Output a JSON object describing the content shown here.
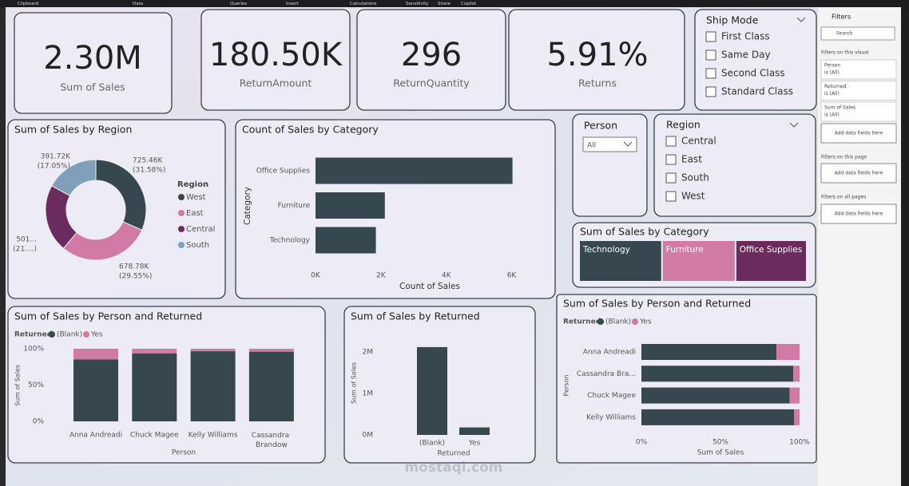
{
  "ribbon": [
    "Clipboard",
    "Data",
    "Queries",
    "Insert",
    "Calculations",
    "Sensitivity",
    "Share",
    "Copilot"
  ],
  "cards": [
    {
      "value": "2.30M",
      "label": "Sum of Sales"
    },
    {
      "value": "180.50K",
      "label": "ReturnAmount"
    },
    {
      "value": "296",
      "label": "ReturnQuantity"
    },
    {
      "value": "5.91%",
      "label": "Returns"
    }
  ],
  "ship_mode": {
    "title": "Ship Mode",
    "options": [
      "First Class",
      "Same Day",
      "Second Class",
      "Standard Class"
    ]
  },
  "person_slicer": {
    "title": "Person",
    "value": "All"
  },
  "region_slicer": {
    "title": "Region",
    "options": [
      "Central",
      "East",
      "South",
      "West"
    ]
  },
  "region_donut": {
    "type": "pie",
    "title": "Sum of Sales by Region",
    "legend_title": "Region",
    "categories": [
      "West",
      "East",
      "Central",
      "South"
    ],
    "values": [
      725.46,
      678.78,
      501.25,
      391.72
    ],
    "value_labels": [
      "725.46K",
      "678.78K",
      "501...",
      "391.72K"
    ],
    "percent_labels": [
      "(31.58%)",
      "(29.55%)",
      "(21....)",
      "(17.05%)"
    ],
    "colors": [
      "#36474f",
      "#d07aa5",
      "#6a2b5f",
      "#7f9fba"
    ]
  },
  "category_bar": {
    "type": "hbar",
    "title": "Count of Sales by Category",
    "x_label": "Count of Sales",
    "y_label": "Category",
    "categories": [
      "Office Supplies",
      "Furniture",
      "Technology"
    ],
    "values": [
      6026,
      2121,
      1847
    ],
    "color": "#36474f",
    "xlim": [
      0,
      6500
    ],
    "xticks": [
      {
        "value": 0,
        "label": "0K"
      },
      {
        "value": 2000,
        "label": "2K"
      },
      {
        "value": 4000,
        "label": "4K"
      },
      {
        "value": 6000,
        "label": "6K"
      }
    ]
  },
  "category_treemap": {
    "type": "treemap",
    "title": "Sum of Sales by Category",
    "categories": [
      "Technology",
      "Furniture",
      "Office Supplies"
    ],
    "values": [
      836154,
      741999,
      719047
    ],
    "colors": [
      "#36474f",
      "#d07aa5",
      "#6a2b5f"
    ]
  },
  "person_returned_col": {
    "type": "stacked_col",
    "title": "Sum of Sales by Person and Returned",
    "legend_title": "Returned",
    "x_label": "Person",
    "y_label": "Sum of Sales",
    "categories": [
      "Anna Andreadi",
      "Chuck Magee",
      "Kelly Williams",
      "Cassandra Brandow"
    ],
    "series": [
      {
        "name": "(Blank)",
        "color": "#36474f",
        "values": [
          85.4,
          93.7,
          96.6,
          96
        ]
      },
      {
        "name": "Yes",
        "color": "#d07aa5",
        "values": [
          14.6,
          6.3,
          3.4,
          4
        ]
      }
    ],
    "ylim": [
      0,
      100
    ],
    "yticks": [
      {
        "value": 0,
        "label": "0%"
      },
      {
        "value": 50,
        "label": "50%"
      },
      {
        "value": 100,
        "label": "100%"
      }
    ]
  },
  "returned_col": {
    "type": "bar",
    "title": "Sum of Sales by Returned",
    "x_label": "Returned",
    "y_label": "Sum of Sales",
    "categories": [
      "(Blank)",
      "Yes"
    ],
    "values": [
      2116700,
      180500
    ],
    "color": "#36474f",
    "ylim": [
      0,
      2000000
    ],
    "yticks": [
      {
        "value": 0,
        "label": "0M"
      },
      {
        "value": 1000000,
        "label": "1M"
      },
      {
        "value": 2000000,
        "label": "2M"
      }
    ]
  },
  "person_returned_bar": {
    "type": "stacked_hbar",
    "title": "Sum of Sales by Person and Returned",
    "legend_title": "Returned",
    "x_label": "Sum of Sales",
    "y_label": "Person",
    "categories": [
      "Anna Andreadi",
      "Cassandra Bra...",
      "Chuck Magee",
      "Kelly Williams"
    ],
    "series": [
      {
        "name": "(Blank)",
        "color": "#36474f",
        "values": [
          85.4,
          96,
          93.7,
          96.6
        ]
      },
      {
        "name": "Yes",
        "color": "#d07aa5",
        "values": [
          14.6,
          4,
          6.3,
          3.4
        ]
      }
    ],
    "xlim": [
      0,
      100
    ],
    "xticks": [
      {
        "value": 0,
        "label": "0%"
      },
      {
        "value": 50,
        "label": "50%"
      },
      {
        "value": 100,
        "label": "100%"
      }
    ]
  },
  "filters": {
    "title": "Filters",
    "search": "Search",
    "visual_heading": "Filters on this visual",
    "visual_filters": [
      {
        "name": "Person",
        "state": "is (All)"
      },
      {
        "name": "Returned",
        "state": "is (All)"
      },
      {
        "name": "Sum of Sales",
        "state": "is (All)"
      }
    ],
    "add_fields": [
      "Add data fields here",
      "Add data fields here",
      "Add data fields here"
    ],
    "page_heading": "Filters on this page",
    "all_heading": "Filters on all pages"
  },
  "watermark": "mostaql.com"
}
